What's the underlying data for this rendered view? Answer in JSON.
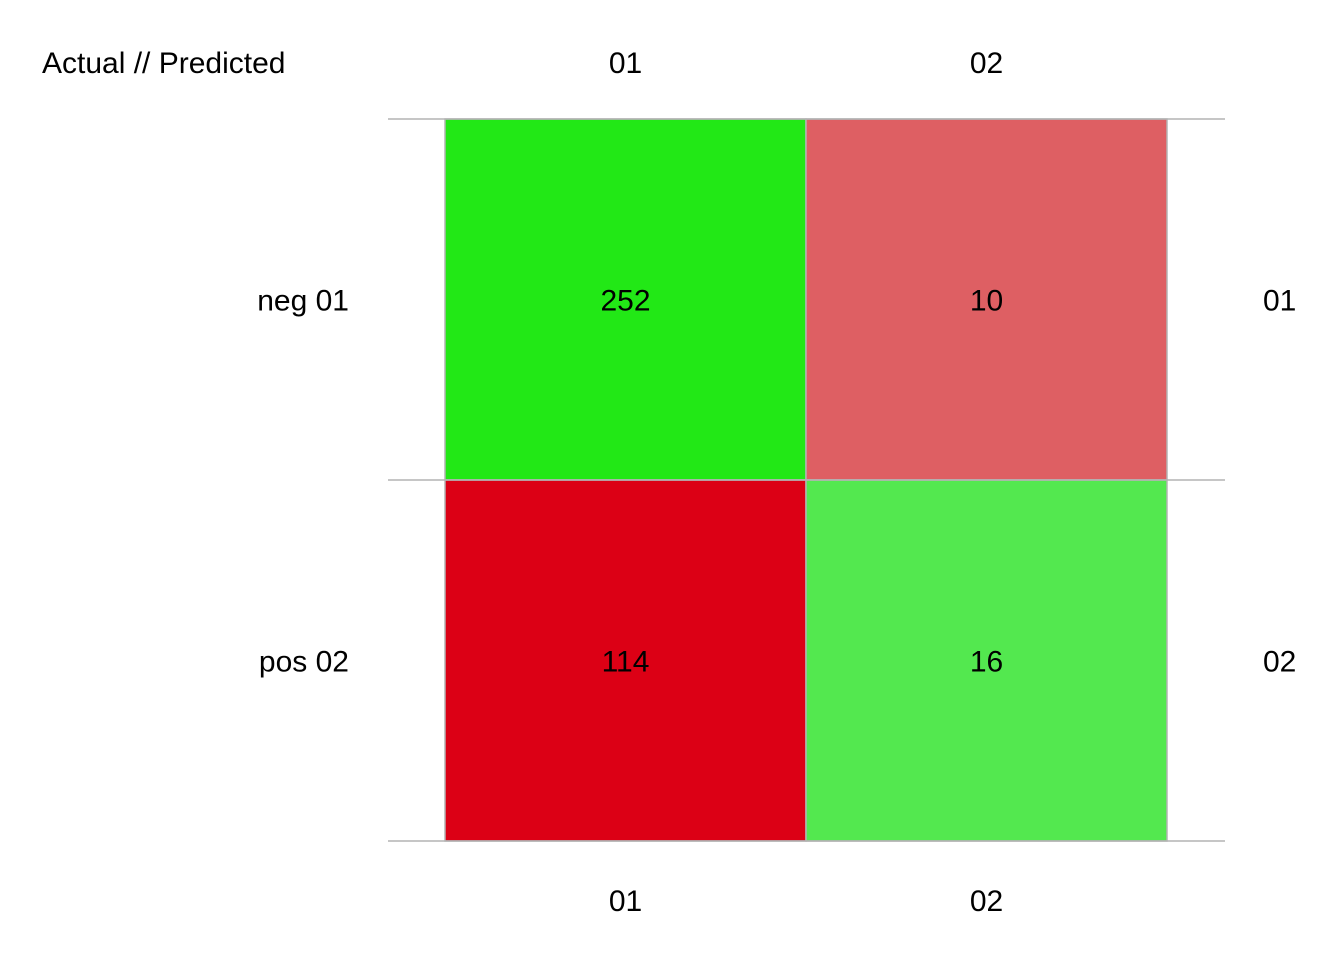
{
  "chart_data": {
    "type": "heatmap",
    "corner_label": "Actual // Predicted",
    "columns": [
      "01",
      "02"
    ],
    "rows": [
      "neg 01",
      "pos 02"
    ],
    "row_labels_right": [
      "01",
      "02"
    ],
    "columns_bottom": [
      "01",
      "02"
    ],
    "values": [
      [
        252,
        10
      ],
      [
        114,
        16
      ]
    ],
    "colors": [
      [
        "#22e816",
        "#de5f63"
      ],
      [
        "#dc0015",
        "#53e84f"
      ]
    ],
    "grid": true
  }
}
